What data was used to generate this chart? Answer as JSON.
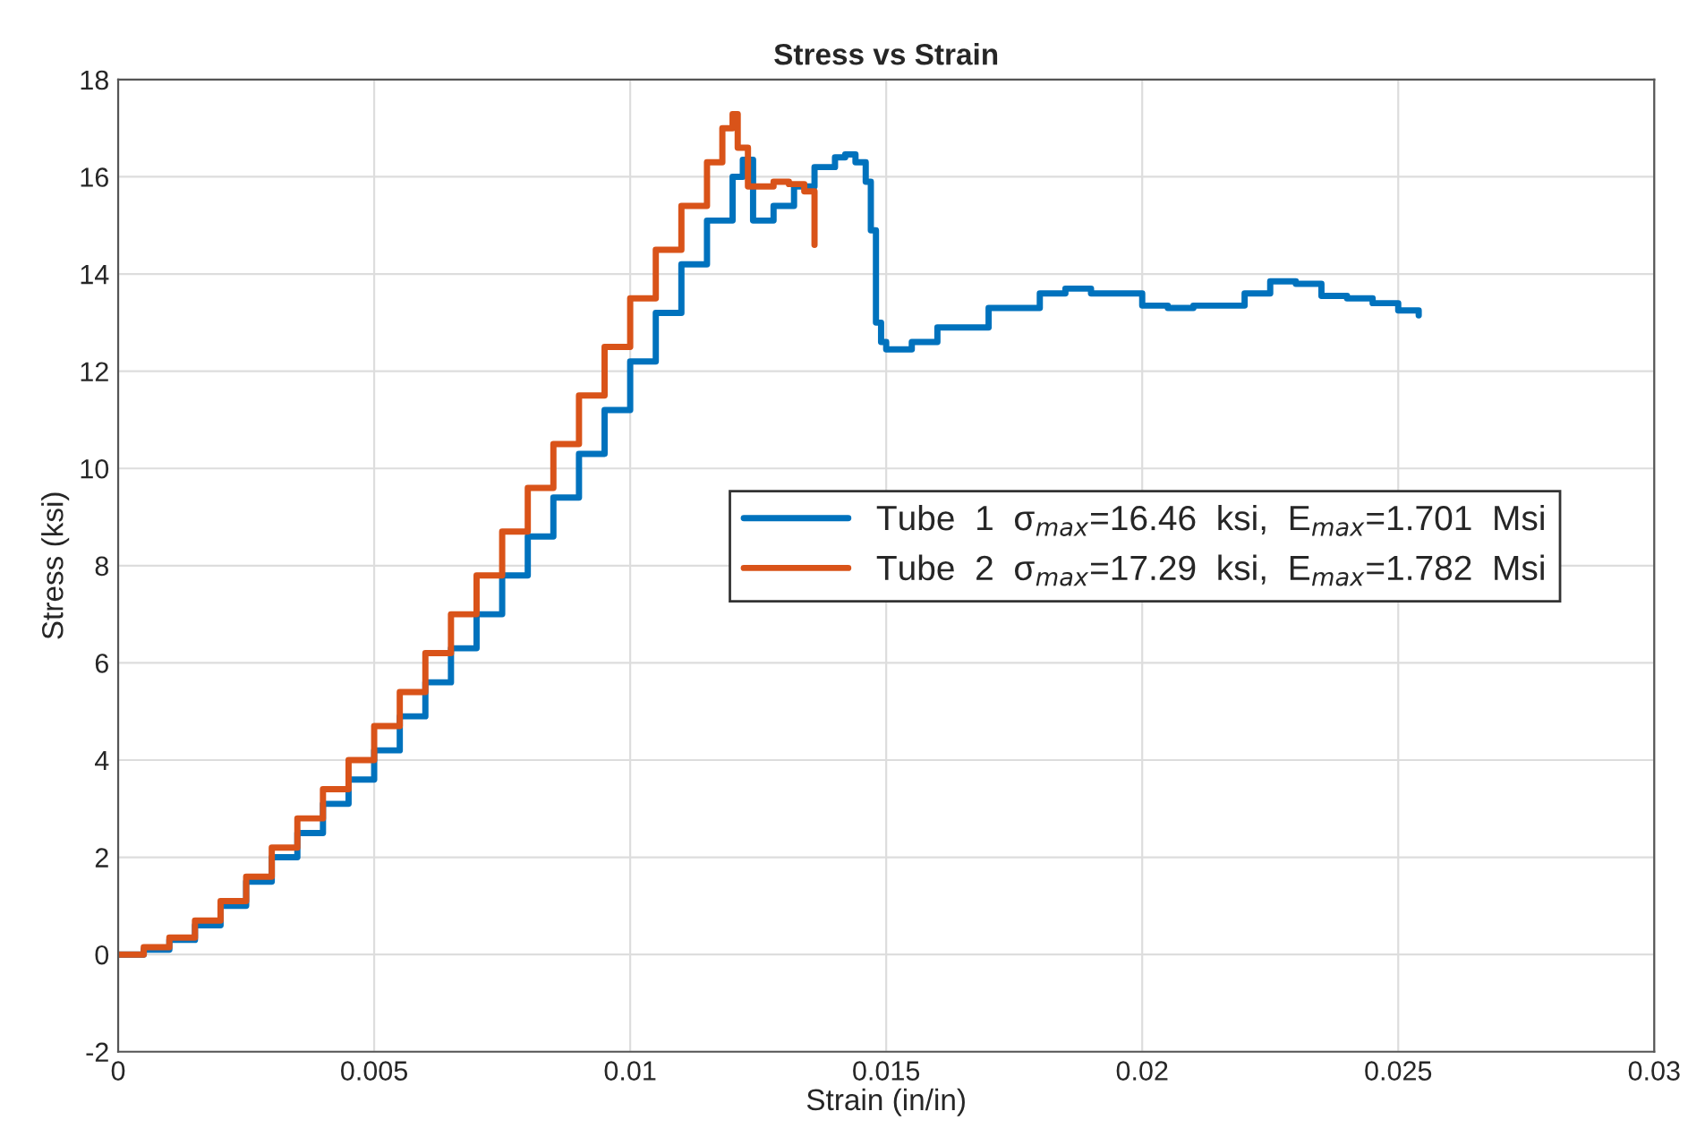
{
  "chart_data": {
    "type": "step",
    "title": "Stress vs Strain",
    "xlabel": "Strain (in/in)",
    "ylabel": "Stress (ksi)",
    "xlim": [
      0,
      0.03
    ],
    "xticks": [
      0,
      0.005,
      0.01,
      0.015,
      0.02,
      0.025,
      0.03
    ],
    "ylim": [
      -2,
      18
    ],
    "yticks": [
      -2,
      0,
      2,
      4,
      6,
      8,
      10,
      12,
      14,
      16,
      18
    ],
    "grid": true,
    "legend": "right",
    "series": [
      {
        "name": "Tube  1  σ$_{max}$=16.46  ksi,  E$_{max}$=1.701  Msi",
        "color": "#0072bd",
        "x": [
          0,
          0.0005,
          0.001,
          0.0015,
          0.002,
          0.0025,
          0.003,
          0.0035,
          0.004,
          0.0045,
          0.005,
          0.0055,
          0.006,
          0.0065,
          0.007,
          0.0075,
          0.008,
          0.0085,
          0.009,
          0.0095,
          0.01,
          0.0105,
          0.011,
          0.0115,
          0.012,
          0.0122,
          0.0124,
          0.0128,
          0.0132,
          0.0136,
          0.014,
          0.0142,
          0.0144,
          0.0146,
          0.0147,
          0.0148,
          0.0149,
          0.015,
          0.0155,
          0.016,
          0.017,
          0.018,
          0.0185,
          0.019,
          0.02,
          0.0205,
          0.021,
          0.022,
          0.0225,
          0.023,
          0.0235,
          0.024,
          0.0245,
          0.025,
          0.0254
        ],
        "values": [
          0,
          0.1,
          0.3,
          0.6,
          1.0,
          1.5,
          2.0,
          2.5,
          3.1,
          3.6,
          4.2,
          4.9,
          5.6,
          6.3,
          7.0,
          7.8,
          8.6,
          9.4,
          10.3,
          11.2,
          12.2,
          13.2,
          14.2,
          15.1,
          16.0,
          16.35,
          15.1,
          15.4,
          15.8,
          16.2,
          16.4,
          16.46,
          16.3,
          15.9,
          14.9,
          13.0,
          12.6,
          12.45,
          12.6,
          12.9,
          13.3,
          13.6,
          13.7,
          13.6,
          13.35,
          13.3,
          13.35,
          13.6,
          13.85,
          13.8,
          13.55,
          13.5,
          13.4,
          13.25,
          13.15
        ]
      },
      {
        "name": "Tube  2  σ$_{max}$=17.29  ksi,  E$_{max}$=1.782  Msi",
        "color": "#d95319",
        "x": [
          0,
          0.0005,
          0.001,
          0.0015,
          0.002,
          0.0025,
          0.003,
          0.0035,
          0.004,
          0.0045,
          0.005,
          0.0055,
          0.006,
          0.0065,
          0.007,
          0.0075,
          0.008,
          0.0085,
          0.009,
          0.0095,
          0.01,
          0.0105,
          0.011,
          0.0115,
          0.0118,
          0.012,
          0.0121,
          0.0123,
          0.0125,
          0.0128,
          0.0131,
          0.0134,
          0.0136
        ],
        "values": [
          0,
          0.15,
          0.35,
          0.7,
          1.1,
          1.6,
          2.2,
          2.8,
          3.4,
          4.0,
          4.7,
          5.4,
          6.2,
          7.0,
          7.8,
          8.7,
          9.6,
          10.5,
          11.5,
          12.5,
          13.5,
          14.5,
          15.4,
          16.3,
          17.0,
          17.29,
          16.6,
          15.8,
          15.8,
          15.9,
          15.85,
          15.7,
          14.6
        ]
      }
    ]
  }
}
